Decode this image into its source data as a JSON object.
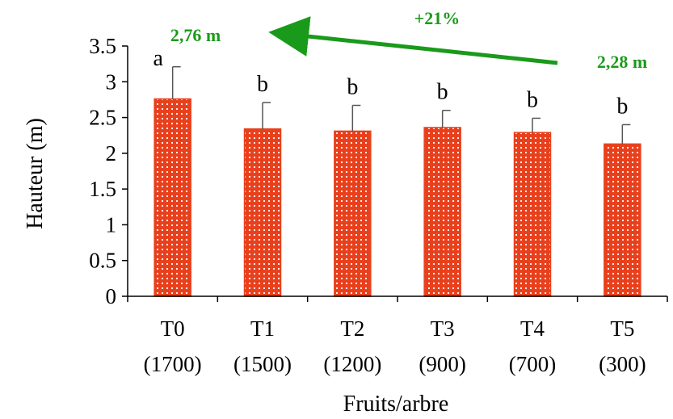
{
  "chart_data": {
    "type": "bar",
    "xlabel": "Fruits/arbre",
    "ylabel": "Hauteur (m)",
    "ylim": [
      0,
      3.5
    ],
    "ytick_step": 0.5,
    "yticks": [
      "0",
      "0.5",
      "1",
      "1.5",
      "2",
      "2.5",
      "3",
      "3.5"
    ],
    "grid": false,
    "categories": [
      {
        "label": "T0",
        "sublabel": "(1700)"
      },
      {
        "label": "T1",
        "sublabel": "(1500)"
      },
      {
        "label": "T2",
        "sublabel": "(1200)"
      },
      {
        "label": "T3",
        "sublabel": "(900)"
      },
      {
        "label": "T4",
        "sublabel": "(700)"
      },
      {
        "label": "T5",
        "sublabel": "(300)"
      }
    ],
    "values": [
      2.76,
      2.34,
      2.31,
      2.36,
      2.29,
      2.13
    ],
    "error_upper": [
      3.21,
      2.71,
      2.67,
      2.6,
      2.49,
      2.4
    ],
    "letters": [
      "a",
      "b",
      "b",
      "b",
      "b",
      "b"
    ],
    "bar_color": "#e8401c",
    "bar_pattern": "white-dots",
    "annotations": {
      "left_value": "2,76 m",
      "right_value": "2,28 m",
      "change": "+21%",
      "color": "#1a9a1a"
    }
  }
}
